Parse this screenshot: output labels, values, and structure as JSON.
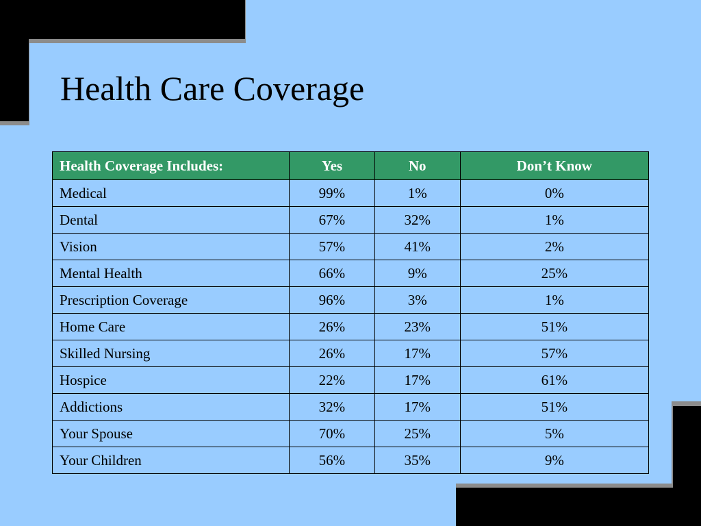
{
  "title": "Health Care Coverage",
  "table": {
    "headers": [
      "Health Coverage Includes:",
      "Yes",
      "No",
      "Don’t Know"
    ],
    "rows": [
      [
        "Medical",
        "99%",
        "1%",
        "0%"
      ],
      [
        "Dental",
        "67%",
        "32%",
        "1%"
      ],
      [
        "Vision",
        "57%",
        "41%",
        "2%"
      ],
      [
        "Mental Health",
        "66%",
        "9%",
        "25%"
      ],
      [
        "Prescription Coverage",
        "96%",
        "3%",
        "1%"
      ],
      [
        "Home Care",
        "26%",
        "23%",
        "51%"
      ],
      [
        "Skilled Nursing",
        "26%",
        "17%",
        "57%"
      ],
      [
        "Hospice",
        "22%",
        "17%",
        "61%"
      ],
      [
        "Addictions",
        "32%",
        "17%",
        "51%"
      ],
      [
        "Your Spouse",
        "70%",
        "25%",
        "5%"
      ],
      [
        "Your Children",
        "56%",
        "35%",
        "9%"
      ]
    ]
  },
  "colors": {
    "background": "#99ccff",
    "header_fill": "#339966",
    "header_text": "#ffffff",
    "decoration": "#000000",
    "decoration_shadow": "#8c8c8c"
  }
}
